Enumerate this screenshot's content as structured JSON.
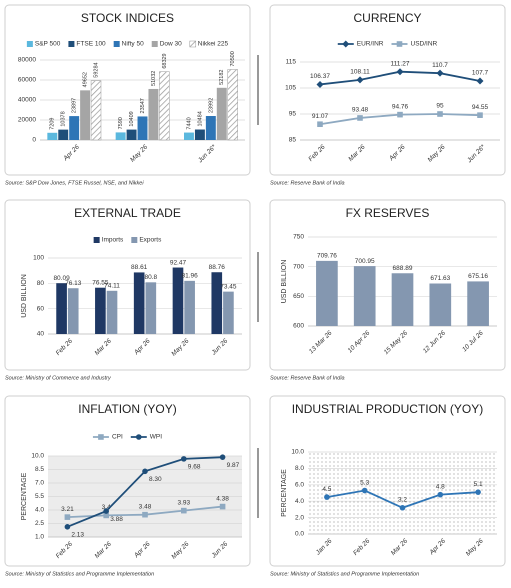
{
  "chart_data": [
    {
      "type": "bar",
      "title": "STOCK INDICES",
      "source": "Source: S&P Dow Jones, FTSE Russel, NSE, and Nikkei",
      "categories": [
        "Apr 26",
        "May 26",
        "Jun 26*"
      ],
      "series": [
        {
          "name": "S&P 500",
          "color": "#5bb8de",
          "values": [
            7209,
            7590,
            7440
          ]
        },
        {
          "name": "FTSE 100",
          "color": "#1f4e79",
          "values": [
            10378,
            10409,
            10484
          ]
        },
        {
          "name": "Nifty 50",
          "color": "#2e75b6",
          "values": [
            23897,
            23547,
            23992
          ]
        },
        {
          "name": "Dow 30",
          "color": "#a5a5a5",
          "values": [
            49652,
            51032,
            52182
          ]
        },
        {
          "name": "Nikkei 225",
          "color": "#9a9a9a",
          "pattern": "hatch",
          "values": [
            59284,
            68329,
            70500
          ]
        }
      ],
      "ylim": [
        0,
        80000
      ],
      "yticks": [
        0,
        20000,
        40000,
        60000,
        80000
      ],
      "grid": true,
      "legend": "top"
    },
    {
      "type": "line",
      "title": "CURRENCY",
      "source": "Source: Reserve Bank of India",
      "categories": [
        "Feb 26",
        "Mar 26",
        "Apr 26",
        "May 26",
        "Jun 26*"
      ],
      "series": [
        {
          "name": "EUR/INR",
          "color": "#1f4e79",
          "marker": "diamond",
          "values": [
            106.37,
            108.11,
            111.27,
            110.7,
            107.7
          ]
        },
        {
          "name": "USD/INR",
          "color": "#8ea9c1",
          "marker": "square",
          "values": [
            91.07,
            93.48,
            94.76,
            95,
            94.55
          ]
        }
      ],
      "ylim": [
        85,
        115
      ],
      "yticks": [
        85,
        95,
        105,
        115
      ],
      "grid": true,
      "legend": "top"
    },
    {
      "type": "bar",
      "title": "EXTERNAL TRADE",
      "source": "Source: Ministry of Commerce and Industry",
      "ylabel": "USD BILLION",
      "categories": [
        "Feb 26",
        "Mar 26",
        "Apr 26",
        "May 26",
        "Jun 26"
      ],
      "series": [
        {
          "name": "Imports",
          "color": "#1f3864",
          "values": [
            80.09,
            76.55,
            88.61,
            92.47,
            88.76
          ]
        },
        {
          "name": "Exports",
          "color": "#8497b0",
          "values": [
            76.13,
            74.11,
            80.8,
            81.96,
            73.45
          ]
        }
      ],
      "ylim": [
        40,
        100
      ],
      "yticks": [
        40,
        60,
        80,
        100
      ],
      "grid": true,
      "legend": "top"
    },
    {
      "type": "bar",
      "title": "FX RESERVES",
      "source": "Source: Reserve Bank of India",
      "ylabel": "USD BILLION",
      "categories": [
        "13 Mar 26",
        "10 Apr 26",
        "15 May 26",
        "12 Jun 26",
        "10 Jul 26"
      ],
      "series": [
        {
          "color": "#8497b0",
          "values": [
            709.76,
            700.95,
            688.89,
            671.63,
            675.16
          ]
        }
      ],
      "ylim": [
        600,
        750
      ],
      "yticks": [
        600,
        650,
        700,
        750
      ],
      "grid": true
    },
    {
      "type": "line",
      "title": "INFLATION (YOY)",
      "source": "Source: Ministry of Statistics and Programme Implementation",
      "ylabel": "PERCENTAGE",
      "categories": [
        "Feb 26",
        "Mar 26",
        "Apr 26",
        "May 26",
        "Jun 26"
      ],
      "series": [
        {
          "name": "CPI",
          "color": "#8ea9c1",
          "marker": "square",
          "values": [
            3.21,
            3.4,
            3.48,
            3.93,
            4.38
          ]
        },
        {
          "name": "WPI",
          "color": "#1f4e79",
          "marker": "circle",
          "values": [
            2.13,
            3.88,
            8.3,
            9.68,
            9.87
          ],
          "value_labels": [
            "2.13",
            "3.88",
            "8.30",
            "9.68",
            "9.87"
          ]
        }
      ],
      "ylim": [
        1,
        10
      ],
      "yticks": [
        {
          "value": 1,
          "label": "1.0"
        },
        {
          "value": 2.5,
          "label": "2.5"
        },
        {
          "value": 4,
          "label": "4.0"
        },
        {
          "value": 5.5,
          "label": "5.5"
        },
        {
          "value": 7,
          "label": "7.0"
        },
        {
          "value": 8.5,
          "label": "8.5"
        },
        {
          "value": 10,
          "label": "10.0"
        }
      ],
      "grid": true,
      "legend": "top"
    },
    {
      "type": "line",
      "title": "INDUSTRIAL PRODUCTION (YOY)",
      "source": "Source: Ministry of Statistics and Programme Implementation",
      "ylabel": "PERCENTAGE",
      "categories": [
        "Jan 26",
        "Feb 26",
        "Mar 26",
        "Apr 26",
        "May 26"
      ],
      "series": [
        {
          "color": "#2e75b6",
          "marker": "circle",
          "values": [
            4.5,
            5.3,
            3.2,
            4.8,
            5.1
          ]
        }
      ],
      "ylim": [
        0,
        10
      ],
      "yticks": [
        {
          "value": 0,
          "label": "0.0"
        },
        {
          "value": 2,
          "label": "2.0"
        },
        {
          "value": 4,
          "label": "4.0"
        },
        {
          "value": 6,
          "label": "6.0"
        },
        {
          "value": 8,
          "label": "8.0"
        },
        {
          "value": 10,
          "label": "10.0"
        }
      ],
      "grid": true
    }
  ]
}
